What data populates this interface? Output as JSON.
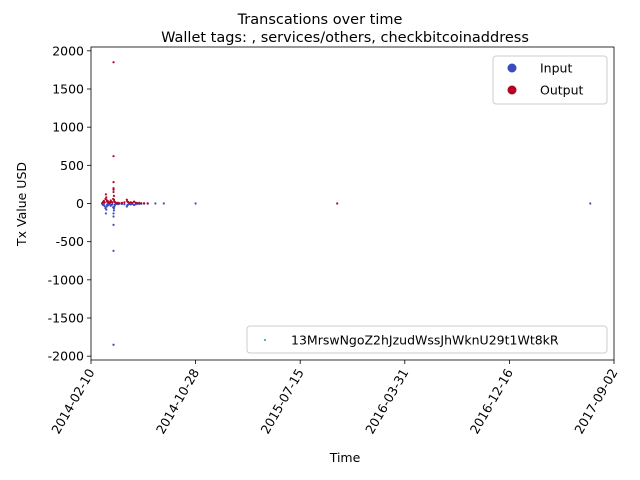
{
  "chart_data": {
    "type": "scatter",
    "title": "Transcations over time",
    "subtitle": "Wallet tags: , services/others, checkbitcoinaddress",
    "xlabel": "Time",
    "ylabel": "Tx Value USD",
    "xlim": [
      "2014-02-10",
      "2017-09-02"
    ],
    "ylim": [
      -2050,
      2050
    ],
    "x_ticks": [
      "2014-02-10",
      "2014-10-28",
      "2015-07-15",
      "2016-03-31",
      "2016-12-16",
      "2017-09-02"
    ],
    "y_ticks": [
      -2000,
      -1500,
      -1000,
      -500,
      0,
      500,
      1000,
      1500,
      2000
    ],
    "grid": false,
    "legend_top": {
      "placement": "top-right",
      "entries": [
        {
          "label": "Input",
          "color": "#3b4cc0"
        },
        {
          "label": "Output",
          "color": "#b40426"
        }
      ]
    },
    "legend_bottom": {
      "placement": "bottom-right",
      "entries": [
        {
          "label": "13MrswNgoZ2hJzudWssJhWknU29t1Wt8kR",
          "color": "#2a9d8f"
        }
      ]
    },
    "series": [
      {
        "name": "Input",
        "color": "#3b4cc0",
        "points": [
          [
            "2014-03-10",
            -5
          ],
          [
            "2014-03-12",
            -20
          ],
          [
            "2014-03-14",
            -10
          ],
          [
            "2014-03-16",
            -35
          ],
          [
            "2014-03-18",
            -60
          ],
          [
            "2014-03-19",
            -130
          ],
          [
            "2014-03-20",
            -80
          ],
          [
            "2014-03-21",
            -40
          ],
          [
            "2014-03-22",
            -15
          ],
          [
            "2014-03-24",
            -25
          ],
          [
            "2014-03-25",
            -5
          ],
          [
            "2014-03-27",
            -12
          ],
          [
            "2014-03-29",
            -8
          ],
          [
            "2014-03-31",
            -30
          ],
          [
            "2014-04-02",
            -18
          ],
          [
            "2014-04-04",
            -10
          ],
          [
            "2014-04-06",
            -50
          ],
          [
            "2014-04-07",
            -170
          ],
          [
            "2014-04-07",
            -280
          ],
          [
            "2014-04-07",
            -620
          ],
          [
            "2014-04-07",
            -1850
          ],
          [
            "2014-04-07",
            -130
          ],
          [
            "2014-04-08",
            -90
          ],
          [
            "2014-04-08",
            -60
          ],
          [
            "2014-04-09",
            -40
          ],
          [
            "2014-04-10",
            -20
          ],
          [
            "2014-04-12",
            -10
          ],
          [
            "2014-04-15",
            -5
          ],
          [
            "2014-04-18",
            -8
          ],
          [
            "2014-04-22",
            -3
          ],
          [
            "2014-04-28",
            -6
          ],
          [
            "2014-05-04",
            -10
          ],
          [
            "2014-05-10",
            -40
          ],
          [
            "2014-05-11",
            -25
          ],
          [
            "2014-05-13",
            -15
          ],
          [
            "2014-05-16",
            -8
          ],
          [
            "2014-05-20",
            -12
          ],
          [
            "2014-05-24",
            -5
          ],
          [
            "2014-05-28",
            -20
          ],
          [
            "2014-06-01",
            -10
          ],
          [
            "2014-06-05",
            -4
          ],
          [
            "2014-06-10",
            -6
          ],
          [
            "2014-06-15",
            -3
          ],
          [
            "2014-06-22",
            -2
          ],
          [
            "2014-07-01",
            -1
          ],
          [
            "2014-07-20",
            0
          ],
          [
            "2014-08-10",
            0
          ],
          [
            "2014-10-28",
            0
          ],
          [
            "2017-07-05",
            0
          ]
        ]
      },
      {
        "name": "Output",
        "color": "#b40426",
        "points": [
          [
            "2014-03-10",
            5
          ],
          [
            "2014-03-12",
            20
          ],
          [
            "2014-03-14",
            35
          ],
          [
            "2014-03-16",
            15
          ],
          [
            "2014-03-18",
            60
          ],
          [
            "2014-03-19",
            120
          ],
          [
            "2014-03-20",
            80
          ],
          [
            "2014-03-21",
            45
          ],
          [
            "2014-03-22",
            25
          ],
          [
            "2014-03-24",
            30
          ],
          [
            "2014-03-25",
            10
          ],
          [
            "2014-03-27",
            18
          ],
          [
            "2014-03-29",
            12
          ],
          [
            "2014-03-31",
            40
          ],
          [
            "2014-04-02",
            22
          ],
          [
            "2014-04-04",
            15
          ],
          [
            "2014-04-06",
            60
          ],
          [
            "2014-04-07",
            150
          ],
          [
            "2014-04-07",
            200
          ],
          [
            "2014-04-07",
            280
          ],
          [
            "2014-04-07",
            620
          ],
          [
            "2014-04-07",
            1850
          ],
          [
            "2014-04-07",
            180
          ],
          [
            "2014-04-08",
            100
          ],
          [
            "2014-04-08",
            50
          ],
          [
            "2014-04-09",
            30
          ],
          [
            "2014-04-10",
            20
          ],
          [
            "2014-04-12",
            12
          ],
          [
            "2014-04-15",
            6
          ],
          [
            "2014-04-18",
            10
          ],
          [
            "2014-04-22",
            4
          ],
          [
            "2014-04-28",
            8
          ],
          [
            "2014-05-04",
            15
          ],
          [
            "2014-05-10",
            50
          ],
          [
            "2014-05-11",
            30
          ],
          [
            "2014-05-13",
            20
          ],
          [
            "2014-05-16",
            10
          ],
          [
            "2014-05-20",
            15
          ],
          [
            "2014-05-24",
            8
          ],
          [
            "2014-05-28",
            25
          ],
          [
            "2014-06-01",
            12
          ],
          [
            "2014-06-05",
            5
          ],
          [
            "2014-06-10",
            8
          ],
          [
            "2014-06-15",
            4
          ],
          [
            "2014-06-22",
            3
          ],
          [
            "2014-07-01",
            2
          ],
          [
            "2015-10-15",
            0
          ]
        ]
      }
    ]
  }
}
